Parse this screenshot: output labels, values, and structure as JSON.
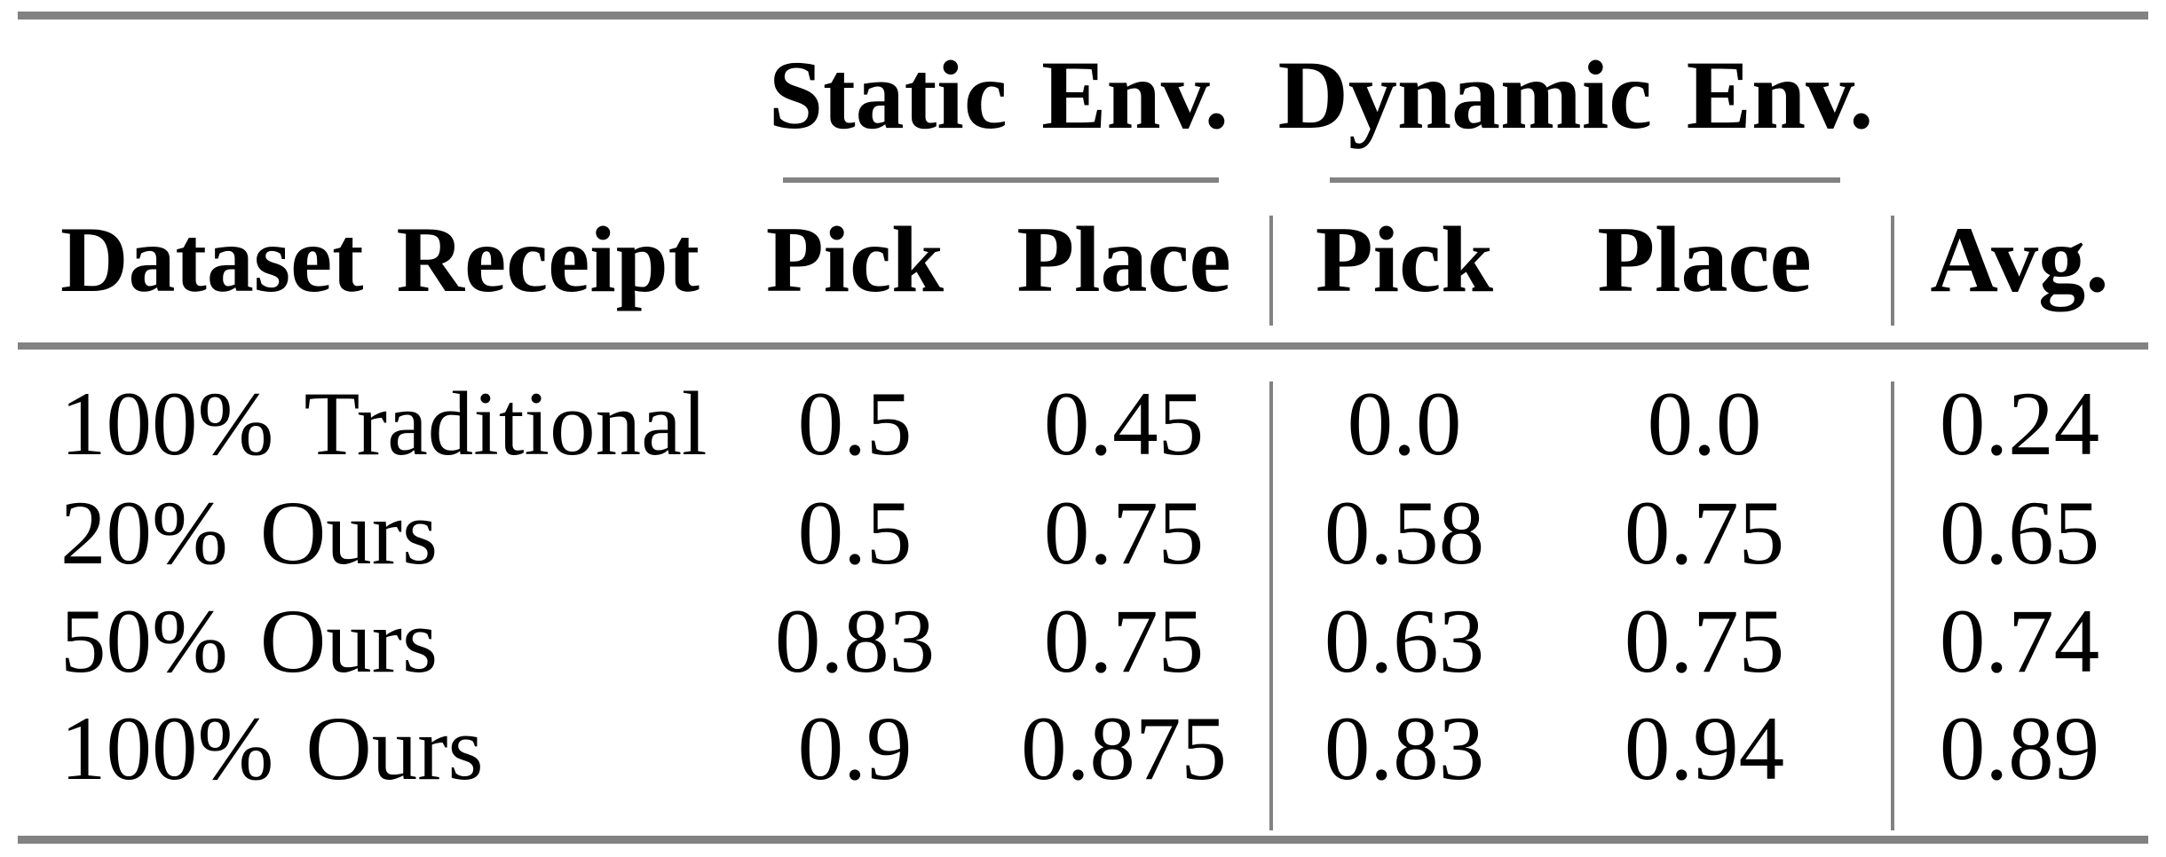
{
  "colors": {
    "rule_gray": "#828282",
    "text": "#000000",
    "background": "#ffffff"
  },
  "table": {
    "group_headers": [
      {
        "label": "Static Env."
      },
      {
        "label": "Dynamic Env."
      }
    ],
    "columns": {
      "dataset": "Dataset Receipt",
      "static_pick": "Pick",
      "static_place": "Place",
      "dynamic_pick": "Pick",
      "dynamic_place": "Place",
      "avg": "Avg."
    },
    "rows": [
      {
        "dataset": "100% Traditional",
        "static_pick": "0.5",
        "static_place": "0.45",
        "dynamic_pick": "0.0",
        "dynamic_place": "0.0",
        "avg": "0.24"
      },
      {
        "dataset": "20% Ours",
        "static_pick": "0.5",
        "static_place": "0.75",
        "dynamic_pick": "0.58",
        "dynamic_place": "0.75",
        "avg": "0.65"
      },
      {
        "dataset": "50% Ours",
        "static_pick": "0.83",
        "static_place": "0.75",
        "dynamic_pick": "0.63",
        "dynamic_place": "0.75",
        "avg": "0.74"
      },
      {
        "dataset": "100% Ours",
        "static_pick": "0.9",
        "static_place": "0.875",
        "dynamic_pick": "0.83",
        "dynamic_place": "0.94",
        "avg": "0.89"
      }
    ]
  },
  "chart_data": {
    "type": "table",
    "title": "",
    "column_groups": [
      "Static Env.",
      "Dynamic Env."
    ],
    "columns": [
      "Dataset Receipt",
      "Static Pick",
      "Static Place",
      "Dynamic Pick",
      "Dynamic Place",
      "Avg."
    ],
    "rows": [
      [
        "100% Traditional",
        0.5,
        0.45,
        0.0,
        0.0,
        0.24
      ],
      [
        "20% Ours",
        0.5,
        0.75,
        0.58,
        0.75,
        0.65
      ],
      [
        "50% Ours",
        0.83,
        0.75,
        0.63,
        0.75,
        0.74
      ],
      [
        "100% Ours",
        0.9,
        0.875,
        0.83,
        0.94,
        0.89
      ]
    ]
  }
}
